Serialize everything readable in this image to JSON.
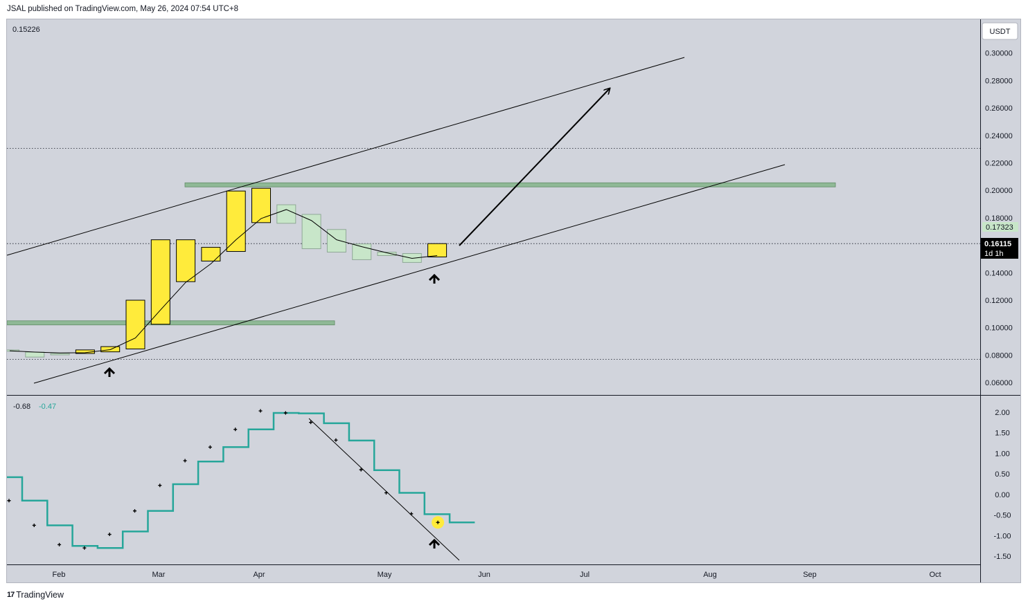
{
  "header": {
    "published": "JSAL published on TradingView.com, May 26, 2024 07:54 UTC+8"
  },
  "footer": {
    "brand": "TradingView"
  },
  "currency_button": "USDT",
  "price_pane": {
    "top_left_value": "0.15226",
    "last_price": "0.16115",
    "countdown": "1d 1h",
    "reference_price": "0.17323"
  },
  "oscillator_pane": {
    "values": [
      "-0.68",
      "-0.47"
    ],
    "value_colors": [
      "#131722",
      "#26a69a"
    ]
  },
  "colors": {
    "background": "#d1d4dc",
    "up_candle": "#ffeb3b",
    "down_candle": "#c8e6c9",
    "zone": "#8fb996",
    "step_line": "#26a69a",
    "highlight_dot": "#ffeb3b"
  },
  "chart_data": [
    {
      "type": "candlestick",
      "timeframe": "weekly",
      "price_axis": {
        "labels": [
          "0.30000",
          "0.28000",
          "0.26000",
          "0.24000",
          "0.22000",
          "0.20000",
          "0.18000",
          "0.14000",
          "0.12000",
          "0.10000",
          "0.08000",
          "0.06000"
        ],
        "ylim": [
          0.051,
          0.3245
        ]
      },
      "time_axis": {
        "labels": [
          "Feb",
          "Mar",
          "Apr",
          "May",
          "Jun",
          "Jul",
          "Aug",
          "Sep",
          "Oct"
        ]
      },
      "candles": [
        {
          "open": 0.0838,
          "close": 0.083
        },
        {
          "open": 0.0822,
          "close": 0.0786
        },
        {
          "open": 0.0812,
          "close": 0.0808
        },
        {
          "open": 0.0812,
          "close": 0.0838
        },
        {
          "open": 0.0824,
          "close": 0.0862
        },
        {
          "open": 0.0845,
          "close": 0.12
        },
        {
          "open": 0.1025,
          "close": 0.164
        },
        {
          "open": 0.1335,
          "close": 0.164
        },
        {
          "open": 0.1485,
          "close": 0.1585
        },
        {
          "open": 0.1555,
          "close": 0.1995
        },
        {
          "open": 0.1765,
          "close": 0.2015
        },
        {
          "open": 0.1895,
          "close": 0.176
        },
        {
          "open": 0.1825,
          "close": 0.1575
        },
        {
          "open": 0.1715,
          "close": 0.155
        },
        {
          "open": 0.161,
          "close": 0.1495
        },
        {
          "open": 0.155,
          "close": 0.1525
        },
        {
          "open": 0.154,
          "close": 0.1475
        },
        {
          "open": 0.1515,
          "close": 0.1612
        }
      ],
      "moving_average": [
        0.0832,
        0.0822,
        0.0816,
        0.0818,
        0.084,
        0.0925,
        0.113,
        0.133,
        0.1465,
        0.164,
        0.1795,
        0.186,
        0.178,
        0.164,
        0.159,
        0.1545,
        0.1505,
        0.1525
      ],
      "horizontal_lines": [
        0.2305,
        0.1612,
        0.077
      ],
      "zones": [
        {
          "from": 0.2025,
          "to": 0.2055
        },
        {
          "from": 0.102,
          "to": 0.105
        }
      ]
    },
    {
      "type": "line",
      "name": "oscillator",
      "value_axis": {
        "labels": [
          "2.00",
          "1.50",
          "1.00",
          "0.50",
          "0.00",
          "-0.50",
          "-1.00",
          "-1.50"
        ],
        "ylim": [
          -1.7,
          2.4
        ]
      },
      "step_line": [
        0.42,
        -0.15,
        -0.75,
        -1.25,
        -1.3,
        -0.9,
        -0.4,
        0.25,
        0.8,
        1.15,
        1.58,
        1.98,
        1.97,
        1.73,
        1.31,
        0.59,
        0.04,
        -0.48,
        -0.68
      ],
      "dots": [
        -0.15,
        -0.75,
        -1.22,
        -1.3,
        -0.97,
        -0.4,
        0.22,
        0.82,
        1.15,
        1.58,
        2.03,
        1.98,
        1.75,
        1.32,
        0.6,
        0.04,
        -0.47,
        -0.68
      ]
    }
  ]
}
